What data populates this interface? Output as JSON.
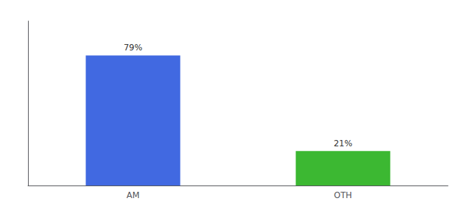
{
  "chart_data": {
    "type": "bar",
    "categories": [
      "AM",
      "OTH"
    ],
    "values": [
      79,
      21
    ],
    "value_labels": [
      "79%",
      "21%"
    ],
    "colors": [
      "#4169e1",
      "#3cb832"
    ],
    "ylim": [
      0,
      100
    ],
    "data_labels": true,
    "tick_labels": "x",
    "grid": false
  }
}
